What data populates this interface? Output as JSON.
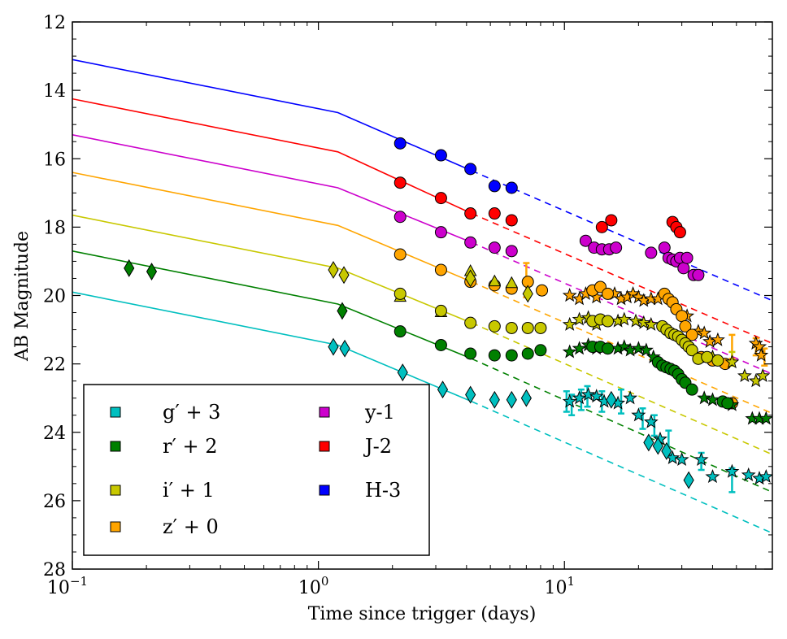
{
  "chart_data": {
    "type": "scatter",
    "title": "",
    "xlabel": "Time since trigger (days)",
    "ylabel": "AB Magnitude",
    "xscale": "log",
    "xlim": [
      0.1,
      70
    ],
    "ylim": [
      28,
      12
    ],
    "y_inverted": true,
    "x_tick_labels": [
      {
        "value": 0.1,
        "base": "10",
        "exp": "−1"
      },
      {
        "value": 1,
        "base": "10",
        "exp": "0"
      },
      {
        "value": 10,
        "base": "10",
        "exp": "1"
      }
    ],
    "y_ticks": [
      12,
      14,
      16,
      18,
      20,
      22,
      24,
      26,
      28
    ],
    "legend_location": "lower-left",
    "series": [
      {
        "name": "H-3",
        "legend": "H-3",
        "color": "#0000ff",
        "model_break_day": 1.2,
        "model": {
          "solid": [
            [
              0.1,
              13.1
            ],
            [
              1.2,
              14.65
            ],
            [
              4.2,
              16.35
            ]
          ],
          "dashed": [
            [
              4.2,
              16.35
            ],
            [
              70,
              20.15
            ]
          ]
        },
        "markers": "circle",
        "points": [
          [
            2.15,
            15.55
          ],
          [
            3.15,
            15.9
          ],
          [
            4.15,
            16.3
          ],
          [
            5.2,
            16.8
          ],
          [
            6.1,
            16.85
          ]
        ]
      },
      {
        "name": "J-2",
        "legend": "J-2",
        "color": "#ff0000",
        "model": {
          "solid": [
            [
              0.1,
              14.25
            ],
            [
              1.2,
              15.8
            ],
            [
              4.2,
              17.6
            ]
          ],
          "dashed": [
            [
              4.2,
              17.6
            ],
            [
              70,
              21.4
            ]
          ]
        },
        "markers": "circle",
        "points": [
          [
            2.15,
            16.7
          ],
          [
            3.15,
            17.15
          ],
          [
            4.15,
            17.6
          ],
          [
            5.2,
            17.6
          ],
          [
            6.1,
            17.8
          ],
          [
            14.2,
            18.0
          ],
          [
            15.5,
            17.8
          ],
          [
            27.5,
            17.85
          ],
          [
            28.5,
            18.0
          ],
          [
            29.5,
            18.15
          ]
        ]
      },
      {
        "name": "y-1",
        "legend": "y-1",
        "color": "#cc00cc",
        "model": {
          "solid": [
            [
              0.1,
              15.3
            ],
            [
              1.2,
              16.85
            ],
            [
              4.2,
              18.45
            ]
          ],
          "dashed": [
            [
              4.2,
              18.45
            ],
            [
              70,
              22.3
            ]
          ]
        },
        "markers": "circle",
        "points": [
          [
            2.15,
            17.7
          ],
          [
            3.15,
            18.15
          ],
          [
            4.15,
            18.45
          ],
          [
            5.2,
            18.6
          ],
          [
            6.1,
            18.7
          ],
          [
            12.2,
            18.4
          ],
          [
            13.2,
            18.6
          ],
          [
            14.2,
            18.65
          ],
          [
            15.2,
            18.65
          ],
          [
            16.2,
            18.6
          ],
          [
            22.5,
            18.75
          ],
          [
            25.5,
            18.6
          ],
          [
            26.5,
            18.9
          ],
          [
            27.5,
            18.95
          ],
          [
            28.5,
            19.0
          ],
          [
            29.5,
            18.9
          ],
          [
            30.5,
            19.2
          ],
          [
            31.5,
            18.9
          ],
          [
            33.5,
            19.4
          ],
          [
            35,
            19.4
          ]
        ]
      },
      {
        "name": "z'",
        "legend": "z′ + 0",
        "color": "#ffa500",
        "model": {
          "solid": [
            [
              0.1,
              16.4
            ],
            [
              1.2,
              17.95
            ],
            [
              4.2,
              19.6
            ]
          ],
          "dashed": [
            [
              4.2,
              19.6
            ],
            [
              70,
              23.45
            ]
          ]
        },
        "markers": "circle",
        "points": [
          [
            2.15,
            18.8
          ],
          [
            3.15,
            19.25
          ],
          [
            4.15,
            19.6
          ],
          [
            5.2,
            19.7
          ],
          [
            6.1,
            19.8
          ],
          [
            7.1,
            19.6
          ],
          [
            8.1,
            19.85
          ],
          [
            13,
            19.85
          ],
          [
            14,
            19.75
          ],
          [
            15,
            19.95
          ],
          [
            25.5,
            19.95
          ],
          [
            26.5,
            20.1
          ],
          [
            27.5,
            20.2
          ],
          [
            28.5,
            20.4
          ],
          [
            30,
            20.6
          ],
          [
            31,
            20.9
          ],
          [
            33,
            21.15
          ],
          [
            36,
            21.8
          ],
          [
            40,
            21.9
          ],
          [
            45,
            22.0
          ],
          [
            48,
            23.15
          ]
        ],
        "stars": [
          [
            10.5,
            20.0
          ],
          [
            11.5,
            20.1
          ],
          [
            12.2,
            19.95
          ],
          [
            13.5,
            20.05
          ],
          [
            16,
            19.95
          ],
          [
            17,
            20.1
          ],
          [
            18,
            20.05
          ],
          [
            19,
            19.95
          ],
          [
            20,
            20.05
          ],
          [
            21,
            20.15
          ],
          [
            22.5,
            20.1
          ],
          [
            24,
            20.1
          ],
          [
            31.5,
            20.6
          ],
          [
            35,
            21.05
          ],
          [
            37,
            21.1
          ],
          [
            39,
            21.35
          ],
          [
            42,
            21.3
          ],
          [
            60,
            21.4
          ],
          [
            62,
            21.5
          ],
          [
            63,
            21.75
          ]
        ],
        "errbars": [
          [
            7.0,
            19.55,
            0.5
          ],
          [
            48,
            21.5,
            0.35
          ],
          [
            60,
            21.5,
            0.25
          ],
          [
            65,
            21.8,
            0.25
          ]
        ]
      },
      {
        "name": "i'",
        "legend": "i′ + 1",
        "color": "#c8c800",
        "model": {
          "solid": [
            [
              0.1,
              17.65
            ],
            [
              1.2,
              19.2
            ],
            [
              4.2,
              20.8
            ]
          ],
          "dashed": [
            [
              4.2,
              20.8
            ],
            [
              70,
              24.65
            ]
          ]
        },
        "markers": "circle",
        "points": [
          [
            2.15,
            19.95
          ],
          [
            3.15,
            20.45
          ],
          [
            4.15,
            20.8
          ],
          [
            5.2,
            20.9
          ],
          [
            6.1,
            20.95
          ],
          [
            7.1,
            20.95
          ],
          [
            8.0,
            20.95
          ],
          [
            13,
            20.75
          ],
          [
            14,
            20.7
          ],
          [
            15,
            20.75
          ],
          [
            25,
            20.9
          ],
          [
            26,
            21.0
          ],
          [
            27,
            21.1
          ],
          [
            28,
            21.15
          ],
          [
            29,
            21.2
          ],
          [
            30,
            21.3
          ],
          [
            31,
            21.4
          ],
          [
            32,
            21.5
          ],
          [
            33,
            21.6
          ],
          [
            35,
            21.85
          ],
          [
            38,
            21.8
          ],
          [
            42,
            21.9
          ]
        ],
        "diamonds": [
          [
            1.15,
            19.25
          ],
          [
            1.27,
            19.4
          ],
          [
            4.15,
            19.5
          ],
          [
            7.1,
            19.95
          ]
        ],
        "triangles": [
          [
            2.15,
            20.05
          ],
          [
            3.15,
            20.5
          ],
          [
            4.15,
            19.3
          ],
          [
            5.2,
            19.6
          ],
          [
            6.1,
            19.65
          ]
        ],
        "stars": [
          [
            10.5,
            20.85
          ],
          [
            11.5,
            20.7
          ],
          [
            12.5,
            20.65
          ],
          [
            13.5,
            20.85
          ],
          [
            16.5,
            20.75
          ],
          [
            17.5,
            20.7
          ],
          [
            19.5,
            20.75
          ],
          [
            21,
            20.8
          ],
          [
            22.5,
            20.85
          ],
          [
            40,
            21.8
          ],
          [
            48,
            21.95
          ],
          [
            54,
            22.35
          ],
          [
            60,
            22.5
          ],
          [
            64,
            22.35
          ]
        ],
        "errbars": [
          [
            48,
            21.85,
            0.2
          ]
        ]
      },
      {
        "name": "r'",
        "legend": "r′ + 2",
        "color": "#008000",
        "model": {
          "solid": [
            [
              0.1,
              18.7
            ],
            [
              1.2,
              20.25
            ],
            [
              4.2,
              21.85
            ]
          ],
          "dashed": [
            [
              4.2,
              21.85
            ],
            [
              70,
              25.75
            ]
          ]
        },
        "markers": "circle",
        "points": [
          [
            2.15,
            21.05
          ],
          [
            3.15,
            21.45
          ],
          [
            4.15,
            21.7
          ],
          [
            5.2,
            21.75
          ],
          [
            6.1,
            21.75
          ],
          [
            7.1,
            21.7
          ],
          [
            8.0,
            21.6
          ],
          [
            13,
            21.5
          ],
          [
            14,
            21.5
          ],
          [
            15,
            21.55
          ],
          [
            24,
            21.95
          ],
          [
            25,
            22.05
          ],
          [
            26,
            22.1
          ],
          [
            27,
            22.15
          ],
          [
            28,
            22.2
          ],
          [
            29,
            22.3
          ],
          [
            30,
            22.45
          ],
          [
            31,
            22.55
          ],
          [
            33,
            22.75
          ],
          [
            44,
            23.1
          ],
          [
            46,
            23.15
          ]
        ],
        "diamonds": [
          [
            0.17,
            19.2
          ],
          [
            0.21,
            19.3
          ],
          [
            1.25,
            20.45
          ]
        ],
        "stars": [
          [
            10.5,
            21.65
          ],
          [
            11.5,
            21.55
          ],
          [
            12.5,
            21.45
          ],
          [
            13.5,
            21.55
          ],
          [
            16.5,
            21.55
          ],
          [
            17.5,
            21.5
          ],
          [
            18.5,
            21.6
          ],
          [
            20,
            21.55
          ],
          [
            21.5,
            21.6
          ],
          [
            23,
            21.8
          ],
          [
            37,
            23.0
          ],
          [
            40,
            23.05
          ],
          [
            48,
            23.2
          ],
          [
            58,
            23.6
          ],
          [
            62,
            23.6
          ],
          [
            66,
            23.6
          ]
        ]
      },
      {
        "name": "g'",
        "legend": "g′ + 3",
        "color": "#00bfbf",
        "model": {
          "solid": [
            [
              0.1,
              19.9
            ],
            [
              1.2,
              21.45
            ],
            [
              4.2,
              23.1
            ]
          ],
          "dashed": [
            [
              4.2,
              23.1
            ],
            [
              70,
              26.95
            ]
          ]
        },
        "markers": "diamond",
        "points": [
          [
            1.15,
            21.5
          ],
          [
            1.28,
            21.55
          ],
          [
            2.2,
            22.25
          ],
          [
            3.2,
            22.75
          ],
          [
            4.15,
            22.9
          ],
          [
            5.2,
            23.05
          ],
          [
            6.1,
            23.05
          ],
          [
            7.0,
            23.0
          ],
          [
            15.5,
            23.05
          ],
          [
            22,
            24.3
          ],
          [
            24,
            24.4
          ],
          [
            26,
            24.55
          ],
          [
            32,
            25.4
          ]
        ],
        "stars": [
          [
            10.5,
            23.1
          ],
          [
            11.5,
            23.0
          ],
          [
            12.5,
            22.9
          ],
          [
            13.5,
            22.95
          ],
          [
            14.5,
            23.1
          ],
          [
            16.5,
            23.15
          ],
          [
            18.5,
            23.0
          ],
          [
            20,
            23.5
          ],
          [
            22.5,
            23.7
          ],
          [
            24.5,
            24.2
          ],
          [
            27.5,
            24.75
          ],
          [
            30,
            24.8
          ],
          [
            36,
            24.8
          ],
          [
            40,
            25.3
          ],
          [
            48,
            25.15
          ],
          [
            56,
            25.25
          ],
          [
            62,
            25.35
          ],
          [
            66,
            25.3
          ]
        ],
        "errbars": [
          [
            10.2,
            23.1,
            0.3
          ],
          [
            10.7,
            23.2,
            0.3
          ],
          [
            11.7,
            23.05,
            0.3
          ],
          [
            12.4,
            22.95,
            0.3
          ],
          [
            14.2,
            23.1,
            0.3
          ],
          [
            17,
            23.1,
            0.35
          ],
          [
            20.8,
            23.6,
            0.3
          ],
          [
            23.2,
            23.8,
            0.3
          ],
          [
            26.5,
            24.3,
            0.35
          ],
          [
            36,
            24.85,
            0.25
          ],
          [
            48,
            25.4,
            0.35
          ]
        ]
      }
    ],
    "legend": {
      "col1": [
        "g′ + 3",
        "r′ + 2",
        "i′ + 1",
        "z′ + 0"
      ],
      "col2": [
        "y-1",
        "J-2",
        "H-3"
      ]
    }
  }
}
